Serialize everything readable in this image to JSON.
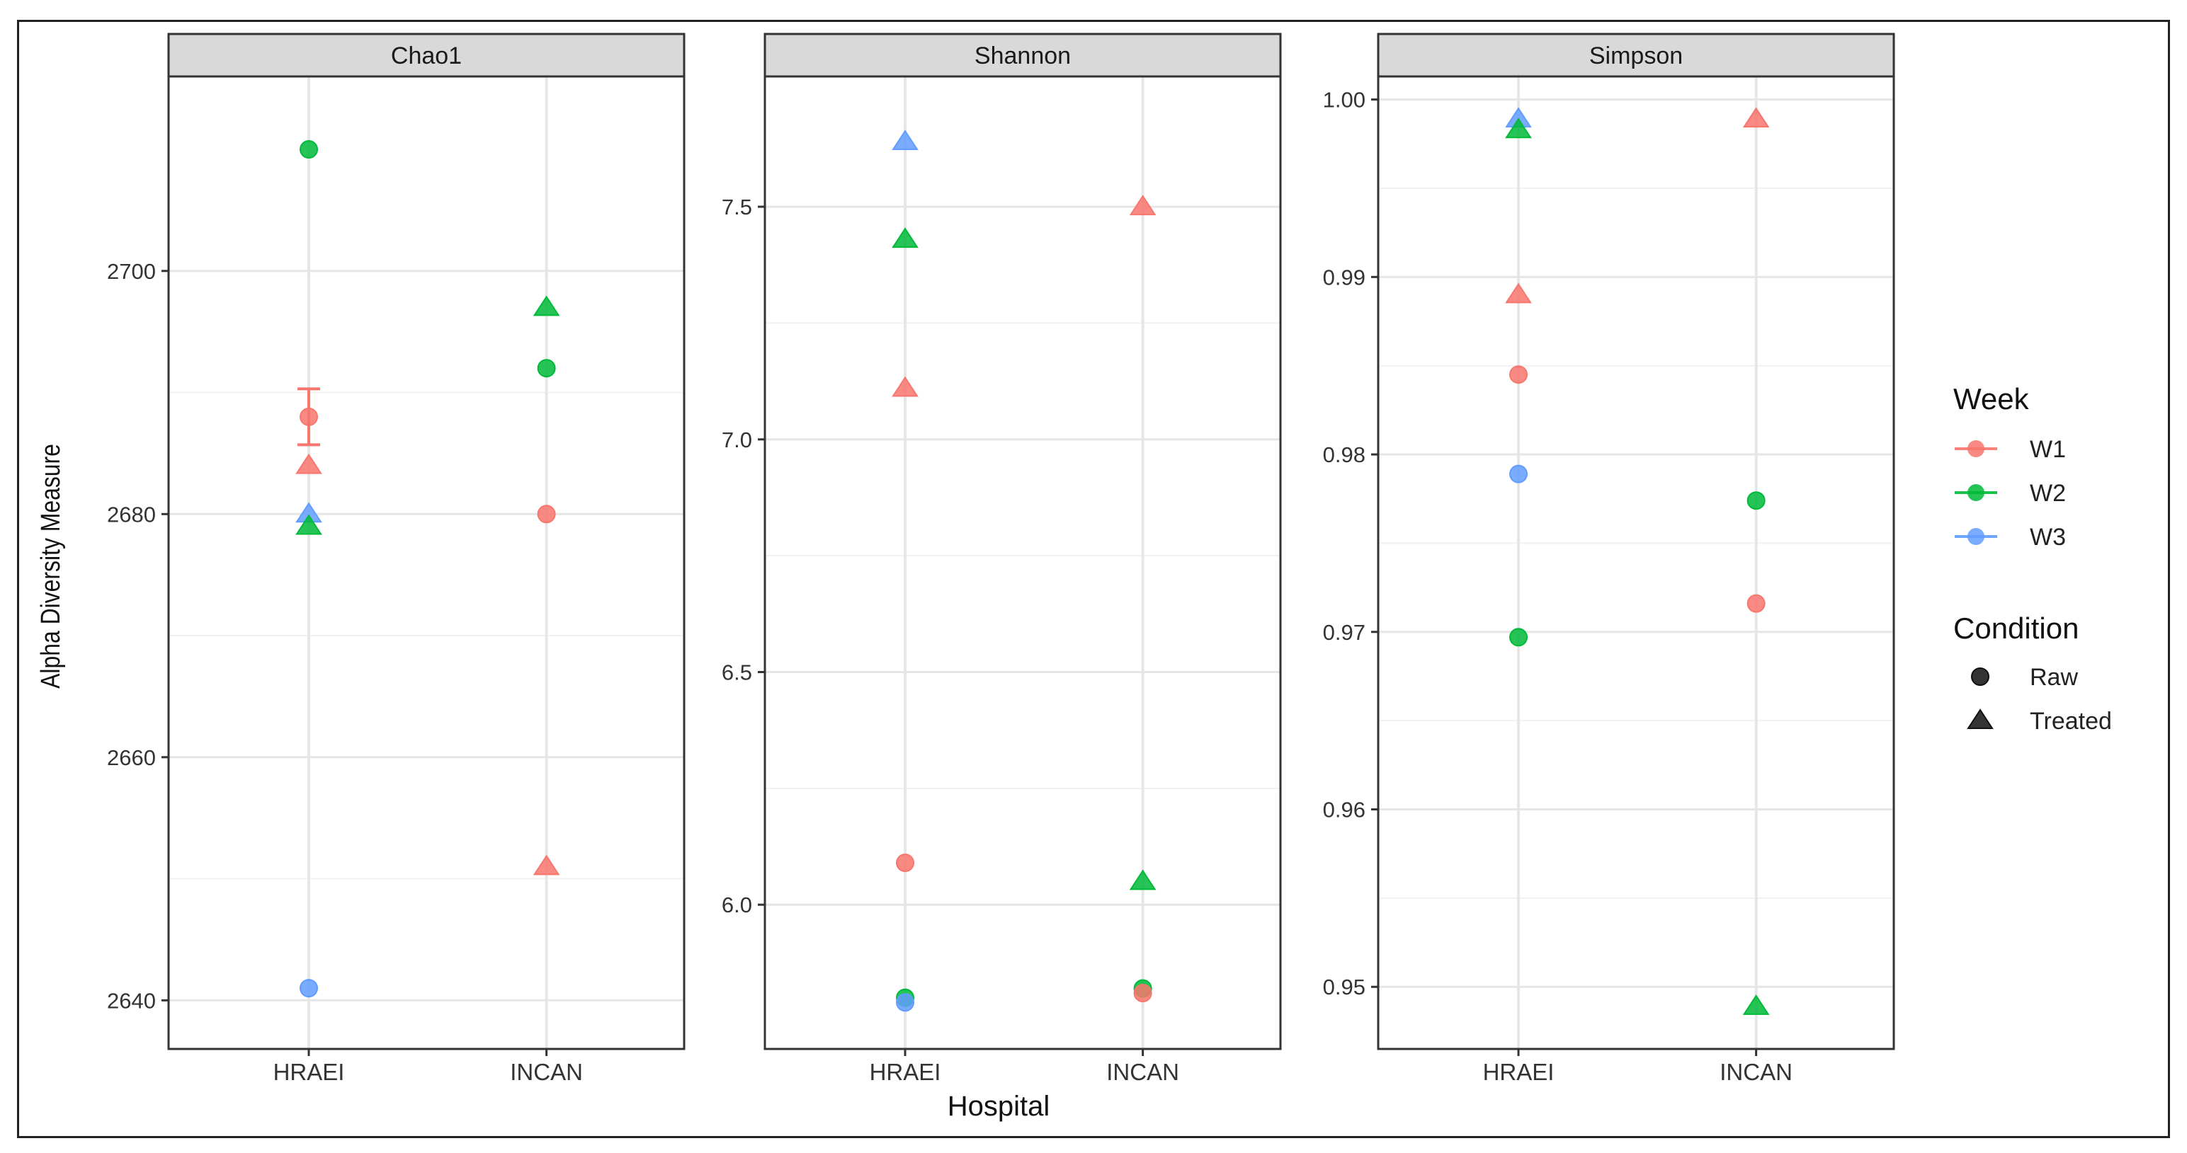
{
  "chart_data": {
    "type": "scatter",
    "layout": "faceted",
    "x_title": "Hospital",
    "y_title": "Alpha Diversity Measure",
    "categories": [
      "HRAEI",
      "INCAN"
    ],
    "legend_position": "right",
    "legend": {
      "week": {
        "title": "Week",
        "entries": [
          {
            "label": "W1",
            "color": "#F8766D"
          },
          {
            "label": "W2",
            "color": "#00BA38"
          },
          {
            "label": "W3",
            "color": "#619CFF"
          }
        ]
      },
      "condition": {
        "title": "Condition",
        "entries": [
          {
            "label": "Raw",
            "shape": "circle"
          },
          {
            "label": "Treated",
            "shape": "triangle"
          }
        ]
      }
    },
    "panels": [
      {
        "title": "Chao1",
        "ylim": [
          2636,
          2716
        ],
        "yticks": [
          2640,
          2660,
          2680,
          2700
        ],
        "tick_labels": [
          "2640",
          "2660",
          "2680",
          "2700"
        ],
        "points": [
          {
            "x": "HRAEI",
            "week": "W2",
            "condition": "Raw",
            "value": 2710
          },
          {
            "x": "HRAEI",
            "week": "W1",
            "condition": "Raw",
            "value": 2688
          },
          {
            "x": "HRAEI",
            "week": "W1",
            "condition": "Treated",
            "value": 2684
          },
          {
            "x": "HRAEI",
            "week": "W3",
            "condition": "Treated",
            "value": 2680
          },
          {
            "x": "HRAEI",
            "week": "W2",
            "condition": "Treated",
            "value": 2679
          },
          {
            "x": "HRAEI",
            "week": "W3",
            "condition": "Raw",
            "value": 2641
          },
          {
            "x": "INCAN",
            "week": "W2",
            "condition": "Treated",
            "value": 2697
          },
          {
            "x": "INCAN",
            "week": "W2",
            "condition": "Raw",
            "value": 2692
          },
          {
            "x": "INCAN",
            "week": "W1",
            "condition": "Raw",
            "value": 2680
          },
          {
            "x": "INCAN",
            "week": "W1",
            "condition": "Treated",
            "value": 2651
          }
        ],
        "errorbars": [
          {
            "x": "HRAEI",
            "week": "W1",
            "low": 2685.7,
            "high": 2690.3
          }
        ]
      },
      {
        "title": "Shannon",
        "ylim": [
          5.69,
          7.78
        ],
        "yticks": [
          6.0,
          6.5,
          7.0,
          7.5
        ],
        "tick_labels": [
          "6.0",
          "6.5",
          "7.0",
          "7.5"
        ],
        "points": [
          {
            "x": "HRAEI",
            "week": "W3",
            "condition": "Treated",
            "value": 7.64
          },
          {
            "x": "HRAEI",
            "week": "W2",
            "condition": "Treated",
            "value": 7.43
          },
          {
            "x": "HRAEI",
            "week": "W1",
            "condition": "Treated",
            "value": 7.11
          },
          {
            "x": "HRAEI",
            "week": "W1",
            "condition": "Raw",
            "value": 6.09
          },
          {
            "x": "HRAEI",
            "week": "W2",
            "condition": "Raw",
            "value": 5.8
          },
          {
            "x": "HRAEI",
            "week": "W3",
            "condition": "Raw",
            "value": 5.79
          },
          {
            "x": "INCAN",
            "week": "W1",
            "condition": "Treated",
            "value": 7.5
          },
          {
            "x": "INCAN",
            "week": "W2",
            "condition": "Treated",
            "value": 6.05
          },
          {
            "x": "INCAN",
            "week": "W2",
            "condition": "Raw",
            "value": 5.82
          },
          {
            "x": "INCAN",
            "week": "W1",
            "condition": "Raw",
            "value": 5.81
          }
        ],
        "errorbars": []
      },
      {
        "title": "Simpson",
        "ylim": [
          0.9465,
          1.0013
        ],
        "yticks": [
          0.95,
          0.96,
          0.97,
          0.98,
          0.99,
          1.0
        ],
        "tick_labels": [
          "0.95",
          "0.96",
          "0.97",
          "0.98",
          "0.99",
          "1.00"
        ],
        "points": [
          {
            "x": "HRAEI",
            "week": "W3",
            "condition": "Treated",
            "value": 0.9989
          },
          {
            "x": "HRAEI",
            "week": "W2",
            "condition": "Treated",
            "value": 0.9983
          },
          {
            "x": "HRAEI",
            "week": "W1",
            "condition": "Treated",
            "value": 0.989
          },
          {
            "x": "HRAEI",
            "week": "W1",
            "condition": "Raw",
            "value": 0.9845
          },
          {
            "x": "HRAEI",
            "week": "W3",
            "condition": "Raw",
            "value": 0.9789
          },
          {
            "x": "HRAEI",
            "week": "W2",
            "condition": "Raw",
            "value": 0.9697
          },
          {
            "x": "INCAN",
            "week": "W1",
            "condition": "Treated",
            "value": 0.9989
          },
          {
            "x": "INCAN",
            "week": "W2",
            "condition": "Raw",
            "value": 0.9774
          },
          {
            "x": "INCAN",
            "week": "W1",
            "condition": "Raw",
            "value": 0.9716
          },
          {
            "x": "INCAN",
            "week": "W2",
            "condition": "Treated",
            "value": 0.9489
          }
        ],
        "errorbars": []
      }
    ]
  }
}
